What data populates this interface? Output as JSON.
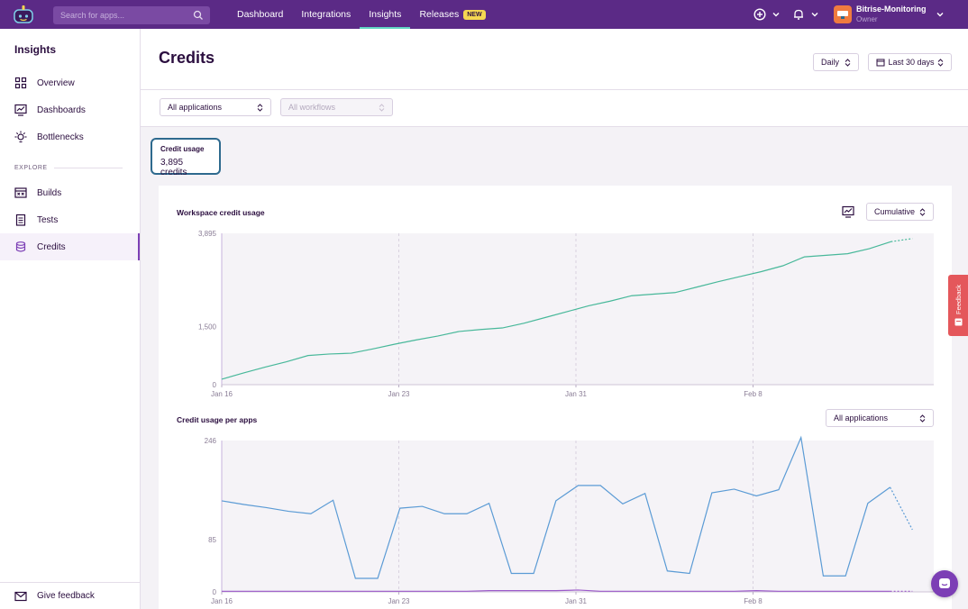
{
  "topbar": {
    "search_placeholder": "Search for apps...",
    "nav": [
      {
        "label": "Dashboard"
      },
      {
        "label": "Integrations"
      },
      {
        "label": "Insights"
      },
      {
        "label": "Releases"
      }
    ],
    "releases_badge": "NEW",
    "account": {
      "name": "Bitrise-Monitoring",
      "role": "Owner"
    }
  },
  "sidebar": {
    "title": "Insights",
    "items": [
      {
        "label": "Overview"
      },
      {
        "label": "Dashboards"
      },
      {
        "label": "Bottlenecks"
      }
    ],
    "explore_label": "EXPLORE",
    "explore_items": [
      {
        "label": "Builds"
      },
      {
        "label": "Tests"
      },
      {
        "label": "Credits"
      }
    ],
    "footer_label": "Give feedback"
  },
  "page": {
    "title": "Credits",
    "interval": "Daily",
    "range": "Last 30 days",
    "app_filter": "All applications",
    "workflow_filter": "All workflows"
  },
  "kpi": {
    "label": "Credit usage",
    "value": "3,895 credits"
  },
  "feedback_tab": "Feedback",
  "colors": {
    "brand": "#5b2a86",
    "series_workspace": "#48b89a",
    "series_app": "#5b9bd5",
    "series_secondary": "#9b59c9"
  },
  "chart_data": [
    {
      "type": "line",
      "title": "Workspace credit usage",
      "mode": "Cumulative",
      "y_ticks": [
        "0",
        "1,500",
        "3,895"
      ],
      "ylim": [
        0,
        3895
      ],
      "x_ticks": [
        "Jan 16",
        "Jan 23",
        "Jan 31",
        "Feb 8"
      ],
      "grid": "vertical dashed",
      "series": [
        {
          "values": [
            140,
            300,
            450,
            590,
            750,
            790,
            810,
            920,
            1040,
            1150,
            1250,
            1370,
            1420,
            1460,
            1580,
            1730,
            1880,
            2030,
            2150,
            2290,
            2330,
            2370,
            2510,
            2650,
            2780,
            2910,
            3060,
            3290,
            3330,
            3370,
            3500,
            3680,
            3760
          ],
          "projected_from": 31
        }
      ]
    },
    {
      "type": "line",
      "title": "Credit usage per apps",
      "filter": "All applications",
      "y_ticks": [
        "0",
        "85",
        "246"
      ],
      "ylim": [
        0,
        246
      ],
      "x_ticks": [
        "Jan 16",
        "Jan 23",
        "Jan 31",
        "Feb 8"
      ],
      "grid": "vertical dashed",
      "series": [
        {
          "values": [
            148,
            142,
            137,
            131,
            127,
            149,
            22,
            22,
            136,
            139,
            127,
            127,
            144,
            30,
            30,
            148,
            173,
            173,
            143,
            160,
            34,
            30,
            161,
            167,
            156,
            166,
            251,
            26,
            26,
            144,
            170,
            101
          ],
          "projected_from": 30
        },
        {
          "values": [
            1,
            1,
            1,
            1,
            1,
            1,
            1,
            1,
            1,
            1,
            1,
            1,
            2,
            2,
            2,
            2,
            3,
            1,
            1,
            1,
            1,
            1,
            1,
            1,
            2,
            1,
            1,
            1,
            1,
            1,
            1,
            1
          ],
          "projected_from": 30
        }
      ]
    }
  ]
}
